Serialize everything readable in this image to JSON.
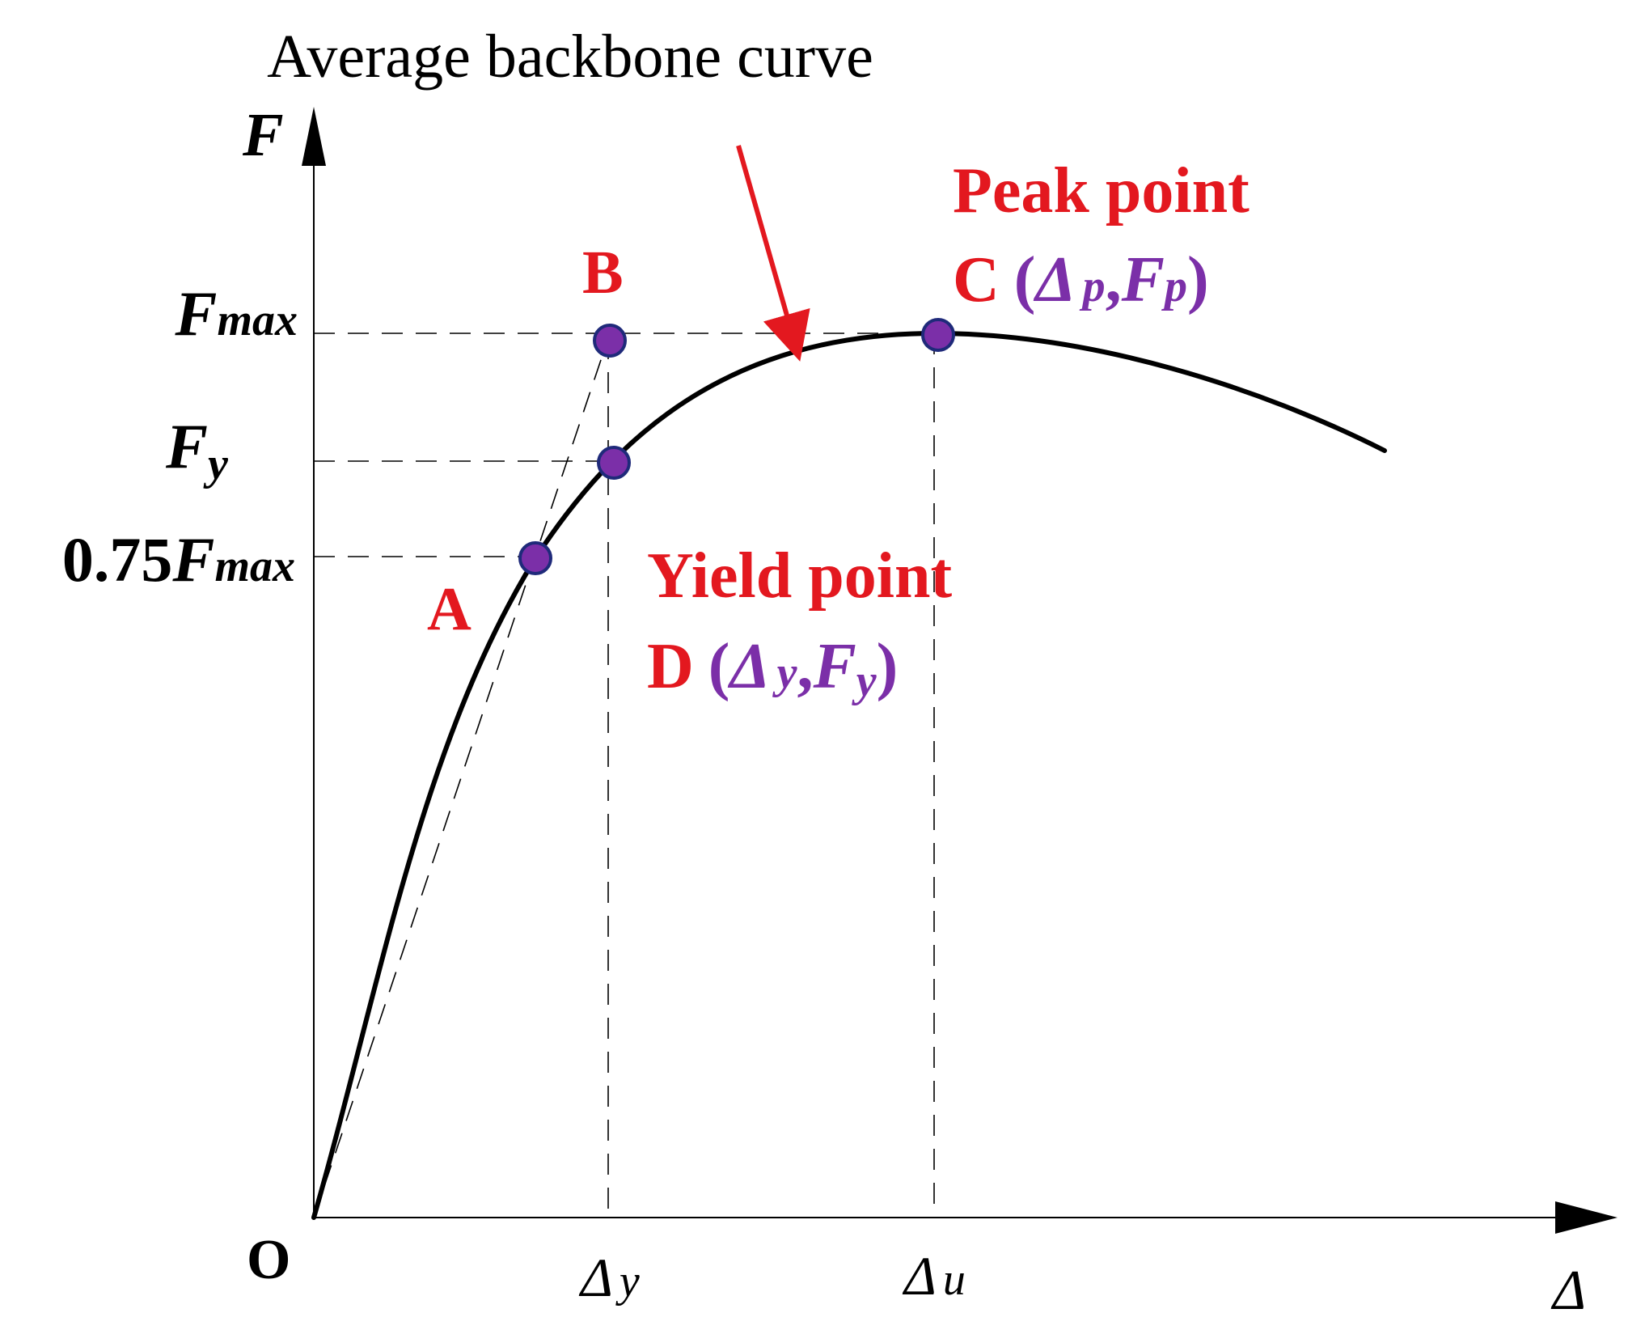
{
  "title": "Average backbone curve",
  "axes": {
    "y_label": "F",
    "x_label": "Δ",
    "origin_label": "O"
  },
  "y_ticks": {
    "fmax": {
      "main": "F",
      "sub": "max"
    },
    "fy": {
      "main": "F",
      "sub": "y"
    },
    "f075": {
      "prefix": "0.75",
      "main": "F",
      "sub": "max"
    }
  },
  "x_ticks": {
    "dy": {
      "main": "Δ",
      "sub": "y"
    },
    "du": {
      "main": "Δ",
      "sub": "u"
    }
  },
  "points": {
    "A": {
      "label": "A"
    },
    "B": {
      "label": "B"
    },
    "C": {
      "label": "C",
      "title": "Peak point",
      "coord_open": "(",
      "delta": "Δ",
      "delta_sub": "p",
      "comma": ",",
      "force": "F",
      "force_sub": "p",
      "coord_close": ")"
    },
    "D": {
      "label": "D",
      "title": "Yield point",
      "coord_open": "(",
      "delta": "Δ",
      "delta_sub": "y",
      "comma": ",",
      "force": "F",
      "force_sub": "y",
      "coord_close": ")"
    }
  },
  "colors": {
    "curve": "#000000",
    "point_fill": "#7B2FA8",
    "point_stroke": "#1F2A7A",
    "label_red": "#E3181F",
    "coord_purple": "#7B2FA8",
    "arrow": "#E3181F"
  }
}
